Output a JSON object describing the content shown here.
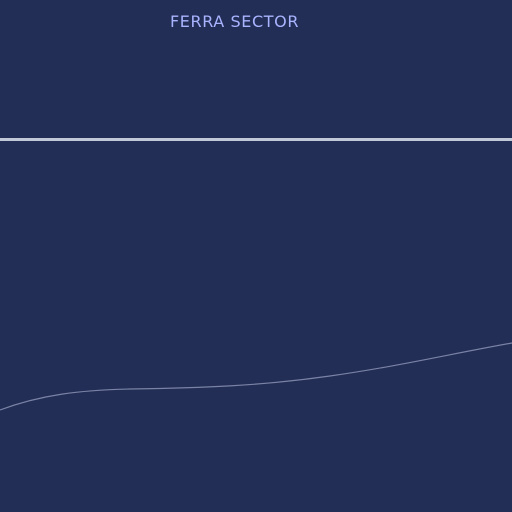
{
  "hud": {
    "sector_name": "FERRA SECTOR"
  },
  "colors": {
    "background": "#222e56",
    "title": "#a9b4ff",
    "horizon_line": "#c1c8d8",
    "terrain_line": "#7a83a6"
  }
}
